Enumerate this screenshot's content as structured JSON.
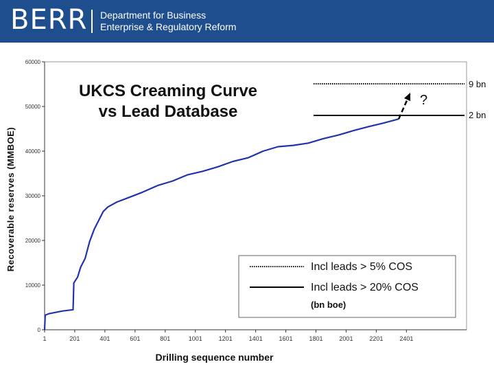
{
  "header": {
    "brand": "BERR",
    "dept_line1": "Department for Business",
    "dept_line2": "Enterprise & Regulatory Reform"
  },
  "chart_data": {
    "type": "line",
    "title_line1": "UKCS Creaming Curve",
    "title_line2": "vs Lead Database",
    "xlabel": "Drilling sequence number",
    "ylabel": "Recoverable reserves (MMBOE)",
    "xlim": [
      1,
      2800
    ],
    "ylim": [
      0,
      60000
    ],
    "x_ticks": [
      "1",
      "201",
      "401",
      "601",
      "801",
      "1001",
      "1201",
      "1401",
      "1601",
      "1801",
      "2001",
      "2201",
      "2401"
    ],
    "y_ticks": [
      "0",
      "10000",
      "20000",
      "30000",
      "40000",
      "50000",
      "60000"
    ],
    "series": [
      {
        "values": [
          [
            1,
            0
          ],
          [
            5,
            3300
          ],
          [
            30,
            3600
          ],
          [
            120,
            4200
          ],
          [
            190,
            4500
          ],
          [
            195,
            10500
          ],
          [
            220,
            11800
          ],
          [
            240,
            14000
          ],
          [
            270,
            16000
          ],
          [
            300,
            19800
          ],
          [
            330,
            22500
          ],
          [
            360,
            24500
          ],
          [
            390,
            26500
          ],
          [
            420,
            27500
          ],
          [
            480,
            28600
          ],
          [
            550,
            29500
          ],
          [
            650,
            30800
          ],
          [
            750,
            32300
          ],
          [
            850,
            33300
          ],
          [
            950,
            34700
          ],
          [
            1050,
            35500
          ],
          [
            1150,
            36500
          ],
          [
            1250,
            37700
          ],
          [
            1350,
            38500
          ],
          [
            1450,
            40000
          ],
          [
            1550,
            41000
          ],
          [
            1650,
            41300
          ],
          [
            1750,
            41800
          ],
          [
            1850,
            42800
          ],
          [
            1950,
            43600
          ],
          [
            2050,
            44600
          ],
          [
            2150,
            45500
          ],
          [
            2250,
            46300
          ],
          [
            2350,
            47200
          ]
        ]
      }
    ],
    "projection": {
      "question_mark": "?"
    },
    "reference_lines": [
      {
        "label": "9 bn",
        "style": "dotted"
      },
      {
        "label": "2 bn",
        "style": "solid"
      }
    ],
    "legend": {
      "placement": "bottom-right",
      "items": [
        {
          "style": "dotted",
          "label": "Incl leads > 5% COS"
        },
        {
          "style": "solid",
          "label": "Incl leads > 20% COS"
        }
      ],
      "note": "(bn boe)"
    },
    "colors": {
      "series": "#2233aa",
      "reference": "#000000"
    }
  }
}
